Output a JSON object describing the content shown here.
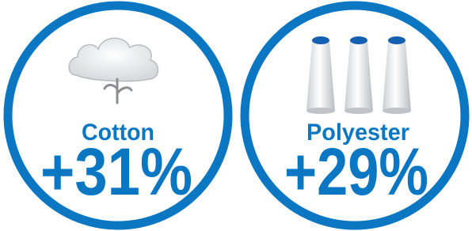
{
  "items": [
    {
      "label": "Cotton",
      "change": "+31%"
    },
    {
      "label": "Polyester",
      "change": "+29%"
    }
  ]
}
